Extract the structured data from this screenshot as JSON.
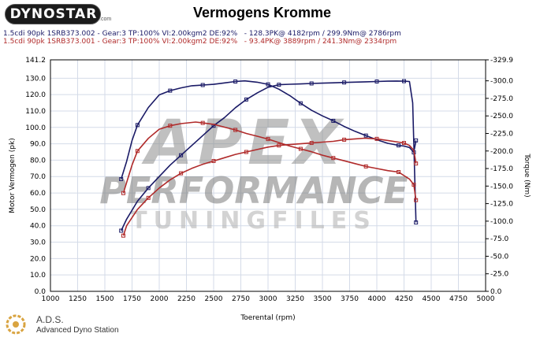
{
  "header": {
    "logo_text": "DYNOSTAR",
    "logo_sub": ".com",
    "title": "Vermogens Kromme"
  },
  "runs": [
    {
      "label": "1.5cdi 90pk 1SRB373.002 - Gear:3 TP:100% VI:2.00kgm2 DE:92%",
      "summary": "- 128.3PK@ 4182rpm / 299.9Nm@ 2786rpm",
      "color": "#1a1a66"
    },
    {
      "label": "1.5cdi 90pk 1SRB373.001 - Gear:3 TP:100% VI:2.00kgm2 DE:92%",
      "summary": "- 93.4PK@ 3889rpm / 241.3Nm@ 2334rpm",
      "color": "#b02a2a"
    }
  ],
  "watermark": {
    "line1": "APEX",
    "line2": "PERFORMANCE",
    "line3": "TUNINGFILES"
  },
  "footer": {
    "brand": "A.D.S.",
    "subtitle": "Advanced Dyno Station"
  },
  "chart_data": {
    "type": "line",
    "xlabel": "Toerental (rpm)",
    "ylabel_left": "Motor Vermogen (pk)",
    "ylabel_right": "Torque (Nm)",
    "xlim": [
      1000,
      5000
    ],
    "ylim_left": [
      0.0,
      141.2
    ],
    "ylim_right": [
      0.0,
      329.9
    ],
    "x_ticks": [
      1000,
      1250,
      1500,
      1750,
      2000,
      2250,
      2500,
      2750,
      3000,
      3250,
      3500,
      3750,
      4000,
      4250,
      4500,
      4750,
      5000
    ],
    "y_left_ticks": [
      "0.0",
      "10.0",
      "20.0",
      "30.0",
      "40.0",
      "50.0",
      "60.0",
      "70.0",
      "80.0",
      "90.0",
      "100.0",
      "110.0",
      "120.0",
      "130.0",
      "141.2"
    ],
    "y_right_ticks": [
      "0.0",
      "-25.0",
      "-50.0",
      "-75.0",
      "-100.0",
      "-125.0",
      "-150.0",
      "-175.0",
      "-200.0",
      "-225.0",
      "-250.0",
      "-275.0",
      "-300.0",
      "-329.9"
    ],
    "grid": true,
    "series": [
      {
        "name": "1.5cdi 90pk 1SRB373.002 vermogen",
        "axis": "left",
        "color": "#1a1a66",
        "x": [
          1650,
          1700,
          1800,
          1900,
          2000,
          2100,
          2200,
          2300,
          2400,
          2500,
          2600,
          2700,
          2800,
          2900,
          3000,
          3100,
          3200,
          3300,
          3400,
          3500,
          3600,
          3700,
          3800,
          3900,
          4000,
          4100,
          4182,
          4250,
          4300,
          4330,
          4360
        ],
        "y": [
          37,
          44,
          55,
          63,
          70,
          77,
          83,
          89,
          95,
          101,
          106,
          112,
          117,
          121,
          124.5,
          126,
          126.3,
          126.5,
          126.8,
          127,
          127.2,
          127.4,
          127.6,
          127.8,
          128,
          128.2,
          128.3,
          128.2,
          128,
          115,
          42
        ]
      },
      {
        "name": "1.5cdi 90pk 1SRB373.002 torque",
        "axis": "right",
        "color": "#1a1a66",
        "x": [
          1650,
          1700,
          1750,
          1800,
          1900,
          2000,
          2100,
          2200,
          2300,
          2400,
          2500,
          2600,
          2700,
          2786,
          2900,
          3000,
          3100,
          3200,
          3300,
          3400,
          3500,
          3600,
          3700,
          3800,
          3900,
          4000,
          4100,
          4200,
          4250,
          4300,
          4340,
          4360
        ],
        "y": [
          160,
          185,
          215,
          237,
          262,
          280,
          286,
          290,
          293,
          294,
          295,
          297,
          299,
          299.9,
          298,
          295,
          288,
          279,
          268,
          258,
          250,
          243,
          235,
          228,
          222,
          216,
          211,
          208,
          207,
          205,
          198,
          215
        ]
      },
      {
        "name": "1.5cdi 90pk 1SRB373.001 vermogen",
        "axis": "left",
        "color": "#b02a2a",
        "x": [
          1670,
          1700,
          1800,
          1900,
          2000,
          2100,
          2200,
          2300,
          2400,
          2500,
          2600,
          2700,
          2800,
          2900,
          3000,
          3100,
          3200,
          3300,
          3400,
          3500,
          3600,
          3700,
          3800,
          3889,
          4000,
          4100,
          4200,
          4250,
          4300,
          4340,
          4360
        ],
        "y": [
          34,
          40,
          50,
          57,
          63,
          68,
          72,
          75,
          77.5,
          79.5,
          81.5,
          83.5,
          85,
          86.5,
          88,
          89,
          89.5,
          90,
          90.5,
          91,
          91.5,
          92.5,
          93,
          93.4,
          93,
          92,
          91,
          90.5,
          89,
          86,
          78
        ]
      },
      {
        "name": "1.5cdi 90pk 1SRB373.001 torque",
        "axis": "right",
        "color": "#b02a2a",
        "x": [
          1670,
          1700,
          1750,
          1800,
          1900,
          2000,
          2100,
          2200,
          2334,
          2400,
          2500,
          2600,
          2700,
          2800,
          2900,
          3000,
          3100,
          3200,
          3300,
          3400,
          3500,
          3600,
          3700,
          3800,
          3900,
          4000,
          4100,
          4200,
          4250,
          4300,
          4340,
          4360
        ],
        "y": [
          140,
          155,
          180,
          200,
          218,
          231,
          236,
          239,
          241.3,
          240,
          238,
          234,
          230,
          225,
          221,
          217,
          212,
          207,
          203,
          199,
          194,
          190,
          186,
          182,
          178,
          175,
          172,
          170,
          165,
          160,
          152,
          130
        ]
      }
    ]
  }
}
